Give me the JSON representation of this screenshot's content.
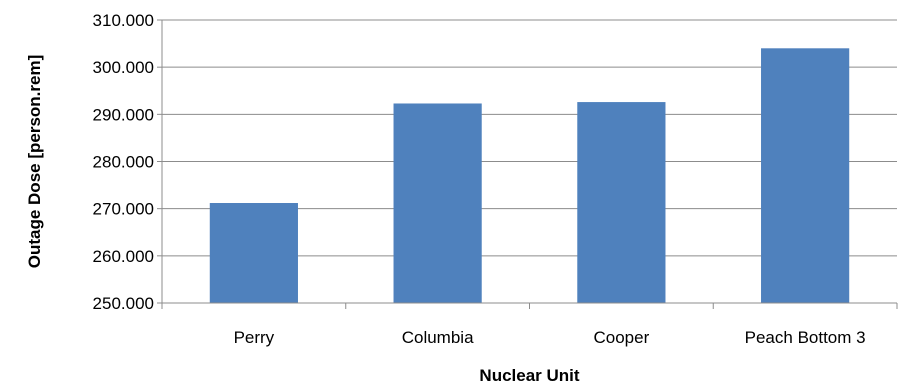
{
  "chart_data": {
    "type": "bar",
    "title": "",
    "xlabel": "Nuclear Unit",
    "ylabel": "Outage Dose [person.rem]",
    "categories": [
      "Perry",
      "Columbia",
      "Cooper",
      "Peach Bottom 3"
    ],
    "values": [
      271.2,
      292.3,
      292.6,
      304.0
    ],
    "ylim": [
      250,
      310
    ],
    "yticks": [
      250,
      260,
      270,
      280,
      290,
      300,
      310
    ],
    "ytick_labels": [
      "250.000",
      "260.000",
      "270.000",
      "280.000",
      "290.000",
      "300.000",
      "310.000"
    ],
    "grid": true,
    "legend": "none",
    "bar_color": "#4f81bd"
  }
}
